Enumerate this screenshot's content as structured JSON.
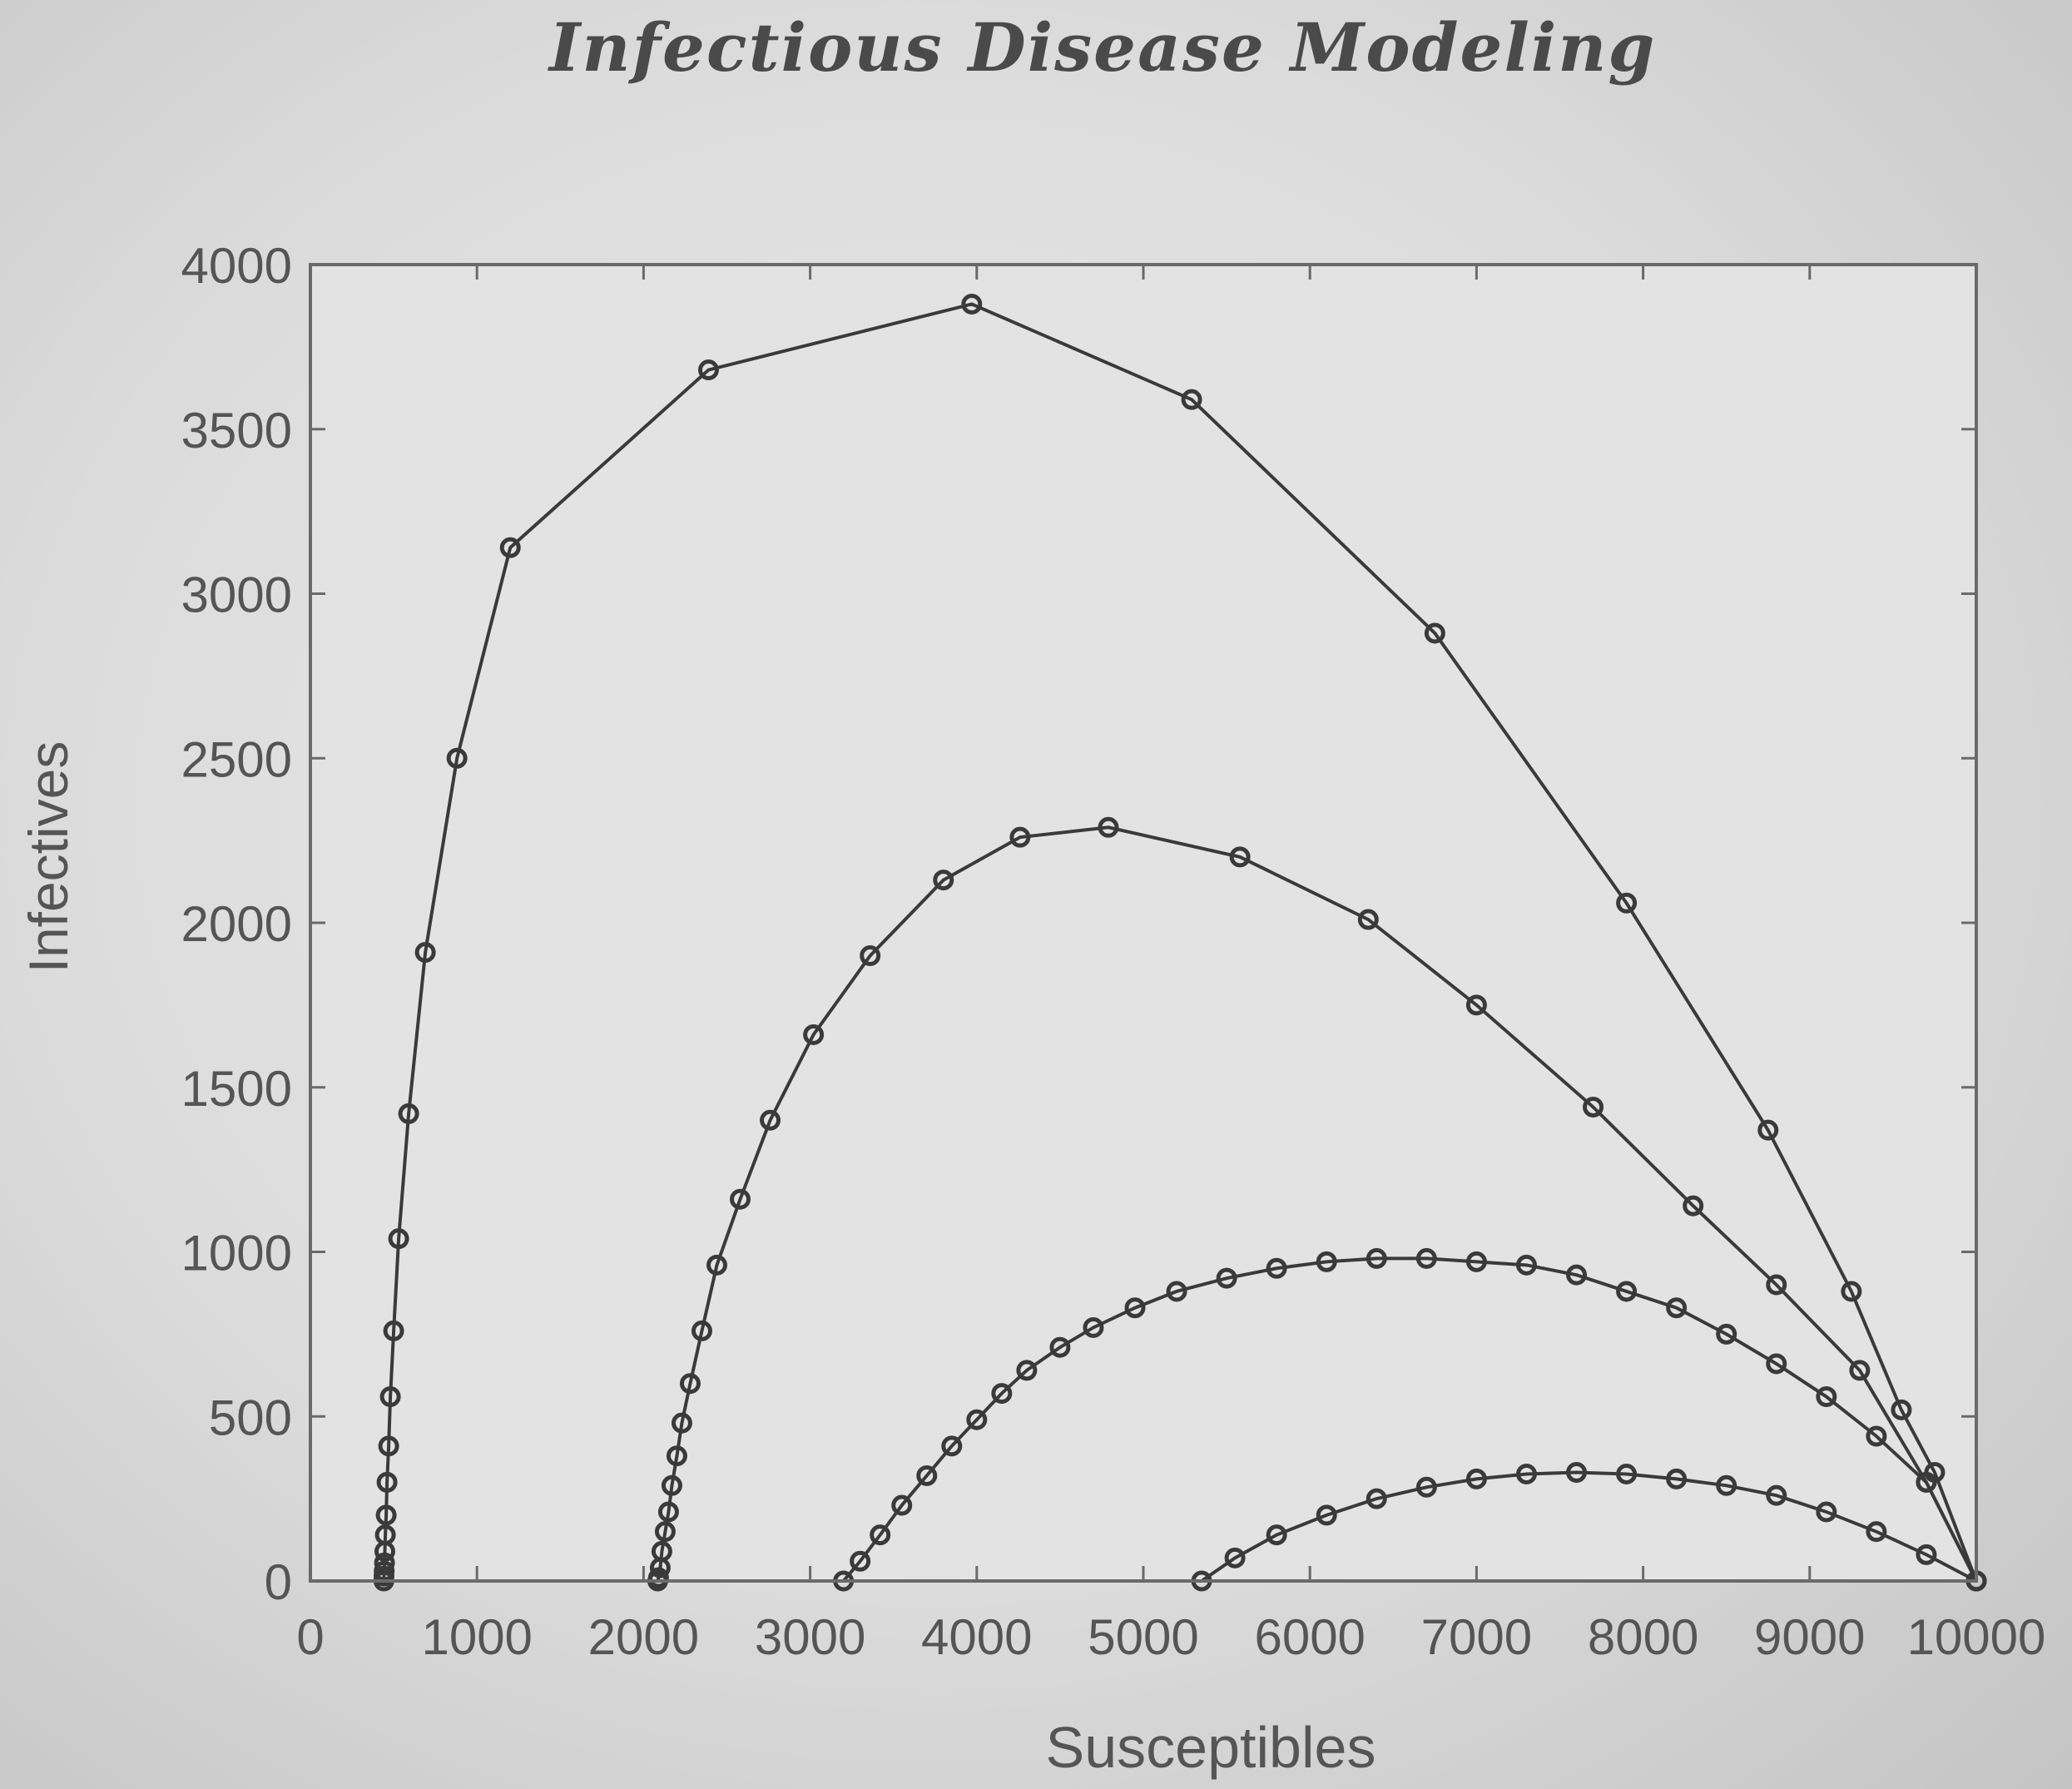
{
  "chart_data": {
    "type": "line",
    "title": "Infectious Disease Modeling",
    "xlabel": "Susceptibles",
    "ylabel": "Infectives",
    "xlim": [
      0,
      10000
    ],
    "ylim": [
      0,
      4000
    ],
    "xticks": [
      0,
      1000,
      2000,
      3000,
      4000,
      5000,
      6000,
      7000,
      8000,
      9000,
      10000
    ],
    "yticks": [
      0,
      500,
      1000,
      1500,
      2000,
      2500,
      3000,
      3500,
      4000
    ],
    "grid": false,
    "line_color": "#3a3a3a",
    "marker": "circle",
    "series": [
      {
        "values": [
          [
            10000,
            0
          ],
          [
            9750,
            330
          ],
          [
            9550,
            520
          ],
          [
            9250,
            880
          ],
          [
            8750,
            1370
          ],
          [
            7900,
            2060
          ],
          [
            6750,
            2880
          ],
          [
            5290,
            3590
          ],
          [
            3970,
            3880
          ],
          [
            2390,
            3680
          ],
          [
            1200,
            3140
          ],
          [
            880,
            2500
          ],
          [
            690,
            1910
          ],
          [
            590,
            1420
          ],
          [
            530,
            1040
          ],
          [
            500,
            760
          ],
          [
            480,
            560
          ],
          [
            470,
            410
          ],
          [
            460,
            300
          ],
          [
            455,
            200
          ],
          [
            450,
            140
          ],
          [
            447,
            90
          ],
          [
            445,
            55
          ],
          [
            443,
            30
          ],
          [
            442,
            15
          ],
          [
            441,
            0
          ]
        ]
      },
      {
        "values": [
          [
            10000,
            0
          ],
          [
            9700,
            300
          ],
          [
            9300,
            640
          ],
          [
            8800,
            900
          ],
          [
            8300,
            1140
          ],
          [
            7700,
            1440
          ],
          [
            7000,
            1750
          ],
          [
            6350,
            2010
          ],
          [
            5580,
            2200
          ],
          [
            4790,
            2290
          ],
          [
            4260,
            2260
          ],
          [
            3800,
            2130
          ],
          [
            3360,
            1900
          ],
          [
            3020,
            1660
          ],
          [
            2760,
            1400
          ],
          [
            2580,
            1160
          ],
          [
            2440,
            960
          ],
          [
            2350,
            760
          ],
          [
            2280,
            600
          ],
          [
            2230,
            480
          ],
          [
            2200,
            380
          ],
          [
            2170,
            290
          ],
          [
            2150,
            210
          ],
          [
            2130,
            150
          ],
          [
            2110,
            90
          ],
          [
            2100,
            40
          ],
          [
            2090,
            10
          ],
          [
            2085,
            0
          ]
        ]
      },
      {
        "values": [
          [
            10000,
            0
          ],
          [
            9700,
            300
          ],
          [
            9400,
            440
          ],
          [
            9100,
            560
          ],
          [
            8800,
            660
          ],
          [
            8500,
            750
          ],
          [
            8200,
            830
          ],
          [
            7900,
            880
          ],
          [
            7600,
            930
          ],
          [
            7300,
            960
          ],
          [
            7000,
            970
          ],
          [
            6700,
            980
          ],
          [
            6400,
            980
          ],
          [
            6100,
            970
          ],
          [
            5800,
            950
          ],
          [
            5500,
            920
          ],
          [
            5200,
            880
          ],
          [
            4950,
            830
          ],
          [
            4700,
            770
          ],
          [
            4500,
            710
          ],
          [
            4300,
            640
          ],
          [
            4150,
            570
          ],
          [
            4000,
            490
          ],
          [
            3850,
            410
          ],
          [
            3700,
            320
          ],
          [
            3550,
            230
          ],
          [
            3420,
            140
          ],
          [
            3300,
            60
          ],
          [
            3200,
            0
          ]
        ]
      },
      {
        "values": [
          [
            10000,
            0
          ],
          [
            9700,
            80
          ],
          [
            9400,
            150
          ],
          [
            9100,
            210
          ],
          [
            8800,
            260
          ],
          [
            8500,
            290
          ],
          [
            8200,
            310
          ],
          [
            7900,
            325
          ],
          [
            7600,
            330
          ],
          [
            7300,
            325
          ],
          [
            7000,
            310
          ],
          [
            6700,
            285
          ],
          [
            6400,
            250
          ],
          [
            6100,
            200
          ],
          [
            5800,
            140
          ],
          [
            5550,
            70
          ],
          [
            5350,
            0
          ]
        ]
      }
    ]
  }
}
